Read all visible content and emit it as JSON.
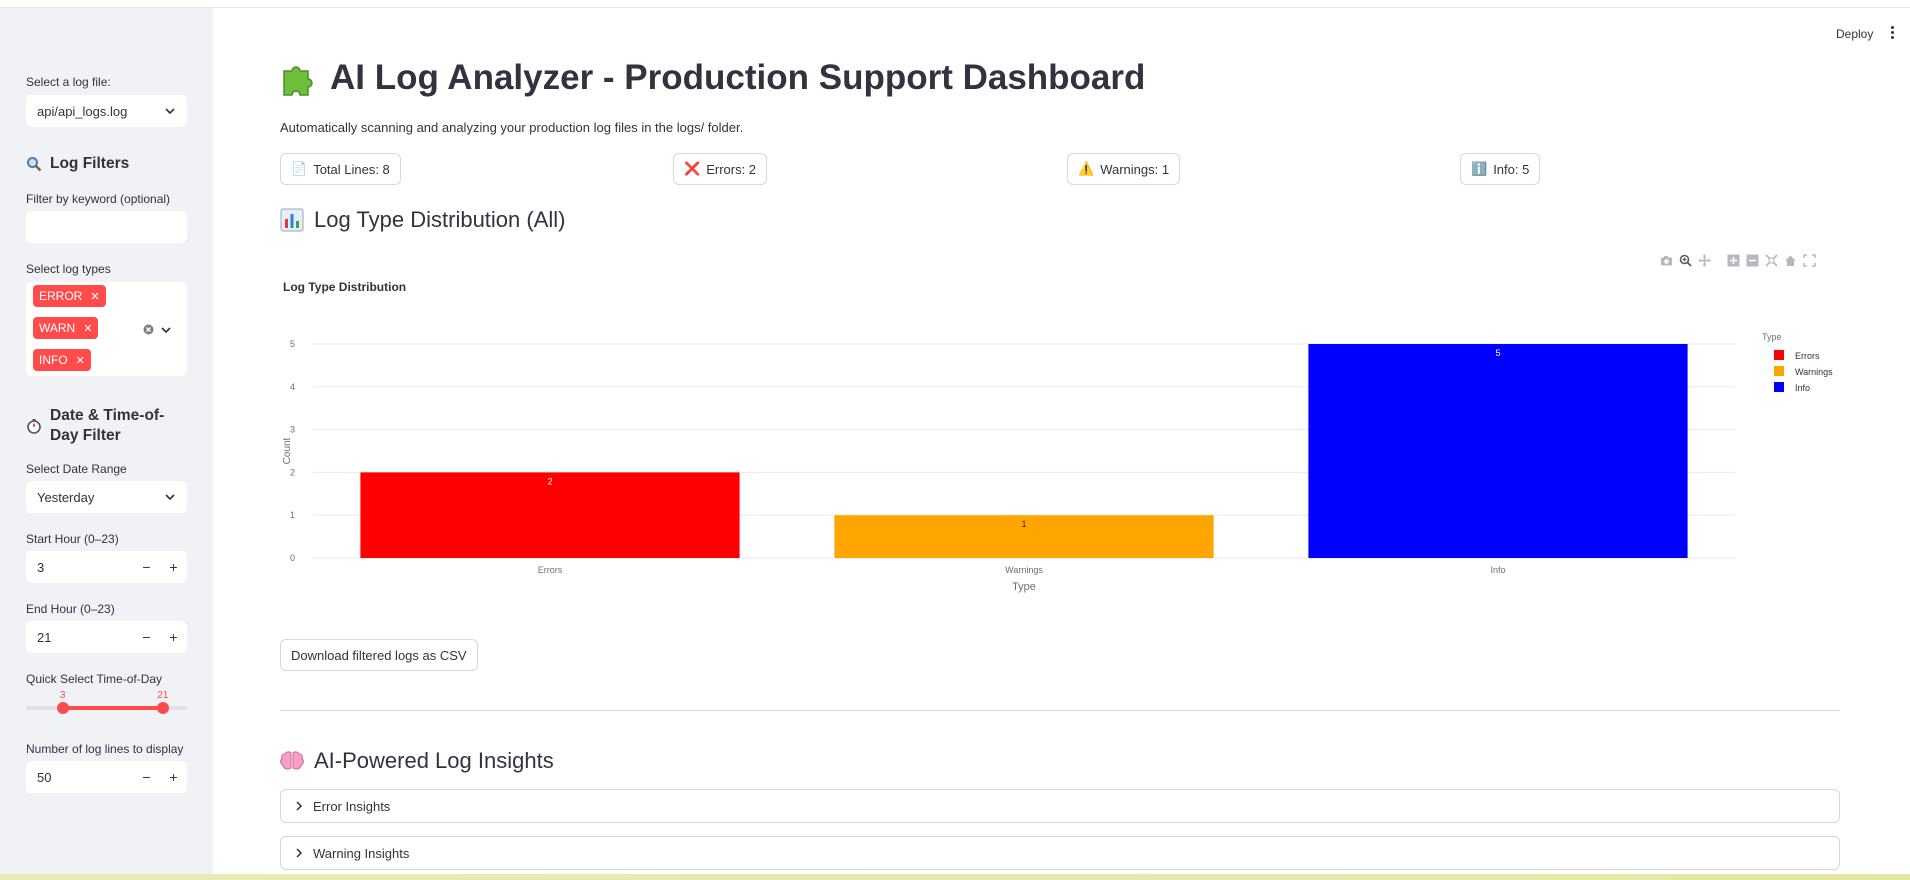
{
  "header": {
    "deploy_label": "Deploy",
    "menu_glyph": "⋮"
  },
  "sidebar": {
    "log_file_label": "Select a log file:",
    "log_file_value": "api/api_logs.log",
    "filters_heading": "Log Filters",
    "keyword_label": "Filter by keyword (optional)",
    "keyword_value": "",
    "log_types_label": "Select log types",
    "log_types": [
      "ERROR",
      "WARN",
      "INFO"
    ],
    "date_heading": "Date & Time-of-Day Filter",
    "date_range_label": "Select Date Range",
    "date_range_value": "Yesterday",
    "start_hour_label": "Start Hour (0–23)",
    "start_hour_value": "3",
    "end_hour_label": "End Hour (0–23)",
    "end_hour_value": "21",
    "quick_select_label": "Quick Select Time-of-Day",
    "slider_low": "3",
    "slider_high": "21",
    "slider_range": [
      3,
      21
    ],
    "slider_bounds": [
      0,
      23
    ],
    "num_lines_label": "Number of log lines to display",
    "num_lines_value": "50"
  },
  "main": {
    "title": "AI Log Analyzer - Production Support Dashboard",
    "subtitle": "Automatically scanning and analyzing your production log files in the logs/ folder.",
    "metrics": [
      {
        "icon": "📄",
        "label": "Total Lines: 8"
      },
      {
        "icon": "❌",
        "label": "Errors: 2"
      },
      {
        "icon": "⚠️",
        "label": "Warnings: 1"
      },
      {
        "icon": "ℹ️",
        "label": "Info: 5"
      }
    ],
    "distribution_heading": "Log Type Distribution (All)",
    "download_label": "Download filtered logs as CSV",
    "insights_heading": "AI-Powered Log Insights",
    "expanders": [
      "Error Insights",
      "Warning Insights"
    ]
  },
  "chart_data": {
    "type": "bar",
    "title": "Log Type Distribution",
    "xlabel": "Type",
    "ylabel": "Count",
    "categories": [
      "Errors",
      "Warnings",
      "Info"
    ],
    "values": [
      2,
      1,
      5
    ],
    "colors": [
      "#ff0000",
      "#ffa500",
      "#0000ff"
    ],
    "ylim": [
      0,
      5
    ],
    "yticks": [
      0,
      1,
      2,
      3,
      4,
      5
    ],
    "legend_title": "Type",
    "legend_position": "top-right",
    "grid": true
  },
  "colors": {
    "accent": "#ff4b4b",
    "sidebar_bg": "#f0f2f6",
    "text": "#31333f"
  }
}
